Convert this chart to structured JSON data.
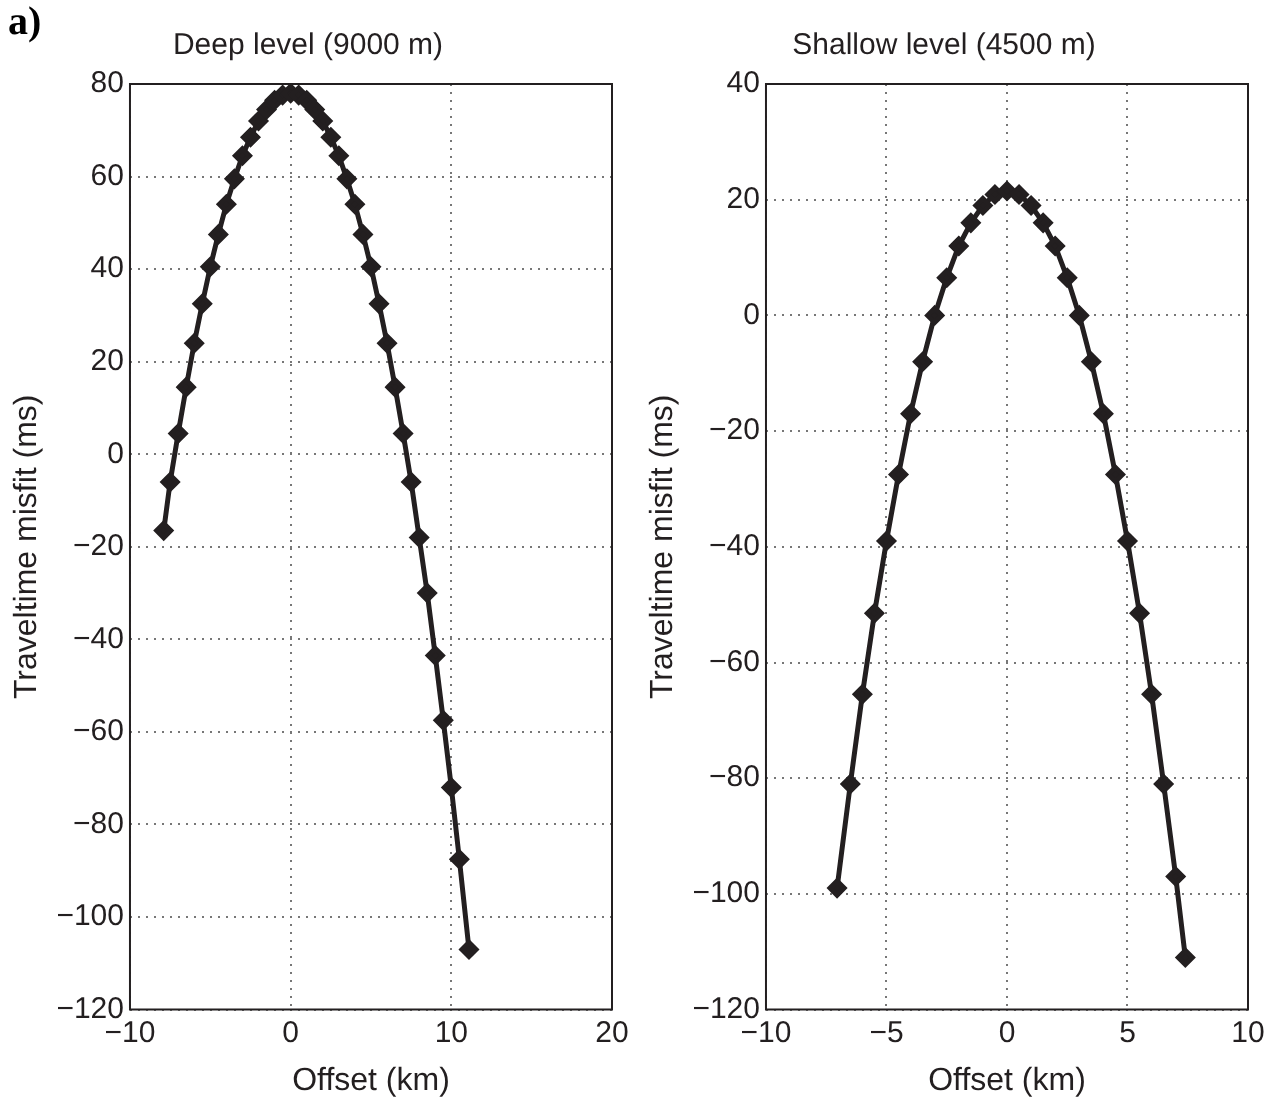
{
  "chart_data": [
    {
      "type": "line",
      "title": "Deep level (9000 m)",
      "xlabel": "Offset (km)",
      "ylabel": "Traveltime misfit (ms)",
      "annotations": [
        "a)"
      ],
      "x": [
        -7.9,
        -7.5,
        -7,
        -6.5,
        -6,
        -5.5,
        -5,
        -4.5,
        -4,
        -3.5,
        -3,
        -2.5,
        -2,
        -1.5,
        -1,
        -0.5,
        0,
        0.5,
        1,
        1.5,
        2,
        2.5,
        3,
        3.5,
        4,
        4.5,
        5,
        5.5,
        6,
        6.5,
        7,
        7.5,
        8,
        8.5,
        9,
        9.5,
        10,
        10.5,
        11.1
      ],
      "series": [
        {
          "color": "#231f20",
          "values": [
            -16.5,
            -6,
            4.5,
            14.5,
            24,
            32.5,
            40.5,
            47.5,
            54,
            59.5,
            64.5,
            68.5,
            72,
            74.5,
            76.5,
            77.6,
            78,
            77.6,
            76.5,
            74.5,
            72,
            68.5,
            64.5,
            59.5,
            54,
            47.5,
            40.5,
            32.5,
            24,
            14.5,
            4.5,
            -6,
            -18,
            -30,
            -43.5,
            -57.5,
            -72,
            -87.5,
            -107
          ]
        }
      ],
      "xlim": [
        -10,
        20
      ],
      "xticks": [
        -10,
        0,
        10,
        20
      ],
      "ylim": [
        -120,
        80
      ],
      "yticks": [
        -120,
        -100,
        -80,
        -60,
        -40,
        -20,
        0,
        20,
        40,
        60,
        80
      ],
      "grid": true,
      "legend": false,
      "marker": "diamond",
      "line_style": "solid"
    },
    {
      "type": "line",
      "title": "Shallow level (4500 m)",
      "xlabel": "Offset (km)",
      "ylabel": "Traveltime misfit (ms)",
      "x": [
        -7.05,
        -6.5,
        -6,
        -5.5,
        -5,
        -4.5,
        -4,
        -3.5,
        -3,
        -2.5,
        -2,
        -1.5,
        -1,
        -0.5,
        0,
        0.5,
        1,
        1.5,
        2,
        2.5,
        3,
        3.5,
        4,
        4.5,
        5,
        5.5,
        6,
        6.5,
        7,
        7.4
      ],
      "series": [
        {
          "color": "#231f20",
          "values": [
            -99,
            -81,
            -65.5,
            -51.5,
            -39,
            -27.5,
            -17,
            -8,
            0,
            6.5,
            12,
            16,
            19,
            20.9,
            21.5,
            20.9,
            19,
            16,
            12,
            6.5,
            0,
            -8,
            -17,
            -27.5,
            -39,
            -51.5,
            -65.5,
            -81,
            -97,
            -111
          ]
        }
      ],
      "xlim": [
        -10,
        10
      ],
      "xticks": [
        -10,
        -5,
        0,
        5,
        10
      ],
      "ylim": [
        -120,
        40
      ],
      "yticks": [
        -120,
        -100,
        -80,
        -60,
        -40,
        -20,
        0,
        20,
        40
      ],
      "grid": true,
      "legend": false,
      "marker": "diamond",
      "line_style": "solid"
    }
  ]
}
